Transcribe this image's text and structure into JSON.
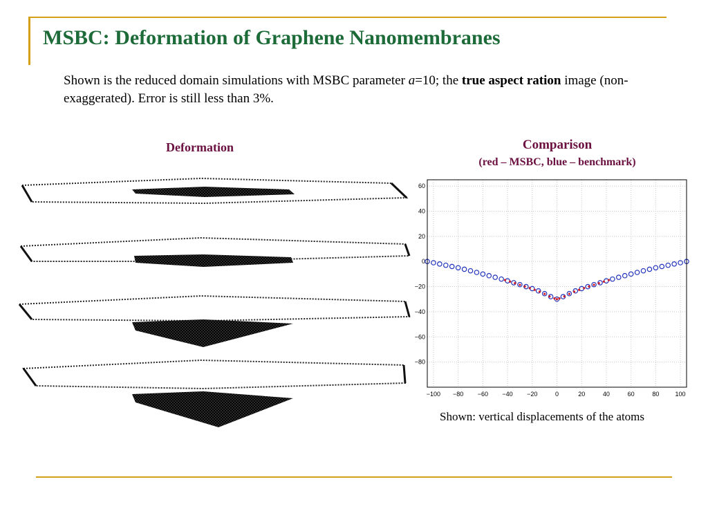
{
  "slide": {
    "title": "MSBC: Deformation of  Graphene Nanomembranes",
    "intro": {
      "t1": "Shown is the reduced domain simulations with MSBC parameter ",
      "t2": "a",
      "t3": "=10; the ",
      "t4": "true aspect ration",
      "t5": " image (non-exaggerated). Error is still less than 3%."
    },
    "deformation_label": "Deformation",
    "comparison_title": "Comparison",
    "comparison_subtitle": "(red – MSBC, blue – benchmark)",
    "note": "Shown: vertical displacements of the atoms",
    "colors": {
      "title": "#1e6b3a",
      "heading": "#6b1040",
      "rule": "#d4a017",
      "msbc": "#cc1f2e",
      "benchmark": "#2233bb"
    }
  },
  "chart_data": {
    "type": "scatter",
    "xlim": [
      -105,
      105
    ],
    "ylim": [
      -100,
      65
    ],
    "x_ticks": [
      -100,
      -80,
      -60,
      -40,
      -20,
      0,
      20,
      40,
      60,
      80,
      100
    ],
    "y_ticks": [
      60,
      40,
      20,
      0,
      -20,
      -40,
      -60,
      -80
    ],
    "x_tick_labels": [
      "−100",
      "−80",
      "−60",
      "−40",
      "−20",
      "0",
      "20",
      "40",
      "60",
      "80",
      "100"
    ],
    "y_tick_labels": [
      "60",
      "40",
      "20",
      "0",
      "−20",
      "−40",
      "−60",
      "−80"
    ],
    "grid": true,
    "series": [
      {
        "color": "#2233bb",
        "marker": "circle-open",
        "x": [
          -105,
          -100,
          -95,
          -90,
          -85,
          -80,
          -75,
          -70,
          -65,
          -60,
          -55,
          -50,
          -45,
          -40,
          -35,
          -30,
          -25,
          -20,
          -15,
          -10,
          -5,
          0,
          5,
          10,
          15,
          20,
          25,
          30,
          35,
          40,
          45,
          50,
          55,
          60,
          65,
          70,
          75,
          80,
          85,
          90,
          95,
          100,
          105
        ],
        "y": [
          0,
          -1,
          -2,
          -3,
          -4,
          -5,
          -6.2,
          -7.4,
          -8.7,
          -10,
          -11.3,
          -12.6,
          -14,
          -15.4,
          -16.9,
          -18.4,
          -20,
          -21.6,
          -23.4,
          -25.6,
          -28,
          -30,
          -28,
          -25.6,
          -23.4,
          -21.6,
          -20,
          -18.4,
          -16.9,
          -15.4,
          -14,
          -12.6,
          -11.3,
          -10,
          -8.7,
          -7.4,
          -6.2,
          -5,
          -4,
          -3,
          -2,
          -1,
          0
        ]
      },
      {
        "color": "#cc1f2e",
        "marker": "dot",
        "x": [
          -42,
          -38,
          -34,
          -30,
          -26,
          -22,
          -18,
          -14,
          -10,
          -6,
          -2,
          0,
          2,
          6,
          10,
          14,
          18,
          22,
          26,
          30,
          34,
          38,
          42
        ],
        "y": [
          -14.8,
          -16.0,
          -17.3,
          -18.6,
          -19.9,
          -21.2,
          -22.6,
          -24.0,
          -25.8,
          -27.8,
          -29.4,
          -30,
          -29.4,
          -27.8,
          -25.8,
          -24.0,
          -22.6,
          -21.2,
          -19.9,
          -18.6,
          -17.3,
          -16.0,
          -14.8
        ]
      }
    ]
  }
}
